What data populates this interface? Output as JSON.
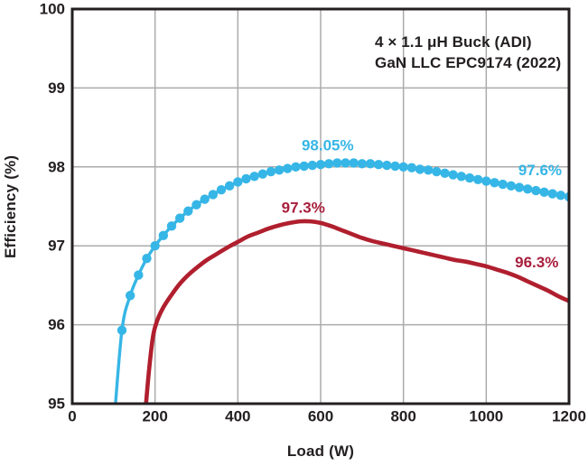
{
  "chart_data": {
    "type": "line",
    "title": "",
    "xlabel": "Load (W)",
    "ylabel": "Efficiency (%)",
    "xlim": [
      0,
      1200
    ],
    "ylim": [
      95,
      100
    ],
    "xticks": [
      0,
      200,
      400,
      600,
      800,
      1000,
      1200
    ],
    "yticks": [
      95,
      96,
      97,
      98,
      99,
      100
    ],
    "grid": true,
    "legend_position": "top-right-inside",
    "axis_color": "#231f20",
    "grid_color": "#ababab",
    "series": [
      {
        "name": "4 × 1.1 μH Buck (ADI)",
        "color": "#36b6e6",
        "marker": "circle",
        "x": [
          100,
          120,
          140,
          160,
          180,
          200,
          220,
          240,
          260,
          280,
          300,
          320,
          340,
          360,
          380,
          400,
          420,
          440,
          460,
          480,
          500,
          520,
          540,
          560,
          580,
          600,
          620,
          640,
          660,
          680,
          700,
          720,
          740,
          760,
          780,
          800,
          820,
          840,
          860,
          880,
          900,
          920,
          940,
          960,
          980,
          1000,
          1020,
          1040,
          1060,
          1080,
          1100,
          1120,
          1140,
          1160,
          1180,
          1200
        ],
        "y": [
          94.7,
          95.93,
          96.37,
          96.63,
          96.84,
          97.0,
          97.13,
          97.25,
          97.35,
          97.44,
          97.52,
          97.59,
          97.65,
          97.71,
          97.76,
          97.81,
          97.85,
          97.88,
          97.91,
          97.94,
          97.96,
          97.98,
          98.0,
          98.01,
          98.02,
          98.03,
          98.04,
          98.05,
          98.05,
          98.05,
          98.04,
          98.04,
          98.03,
          98.02,
          98.01,
          98.0,
          97.99,
          97.97,
          97.96,
          97.94,
          97.92,
          97.9,
          97.88,
          97.86,
          97.84,
          97.82,
          97.8,
          97.78,
          97.76,
          97.74,
          97.72,
          97.7,
          97.68,
          97.66,
          97.64,
          97.62
        ]
      },
      {
        "name": "GaN LLC EPC9174 (2022)",
        "color": "#b01f2e",
        "marker": "none",
        "x": [
          175,
          185,
          195,
          205,
          220,
          240,
          260,
          280,
          300,
          325,
          350,
          375,
          400,
          425,
          450,
          475,
          500,
          525,
          550,
          575,
          600,
          625,
          650,
          675,
          700,
          725,
          750,
          775,
          800,
          825,
          850,
          875,
          900,
          925,
          950,
          975,
          1000,
          1025,
          1050,
          1075,
          1100,
          1125,
          1150,
          1175,
          1200
        ],
        "y": [
          94.8,
          95.4,
          95.85,
          96.05,
          96.22,
          96.38,
          96.52,
          96.63,
          96.72,
          96.82,
          96.9,
          96.98,
          97.05,
          97.12,
          97.17,
          97.22,
          97.26,
          97.29,
          97.31,
          97.31,
          97.29,
          97.25,
          97.2,
          97.15,
          97.1,
          97.06,
          97.03,
          97.0,
          96.97,
          96.94,
          96.91,
          96.88,
          96.85,
          96.82,
          96.8,
          96.77,
          96.74,
          96.7,
          96.66,
          96.61,
          96.55,
          96.49,
          96.43,
          96.36,
          96.3
        ]
      }
    ],
    "annotations": [
      {
        "text": "98.05%",
        "x": 617,
        "y": 98.27,
        "color": "#36b6e6"
      },
      {
        "text": "97.6%",
        "x": 1130,
        "y": 97.96,
        "color": "#36b6e6"
      },
      {
        "text": "97.3%",
        "x": 558,
        "y": 97.48,
        "color": "#a81e3c"
      },
      {
        "text": "96.3%",
        "x": 1122,
        "y": 96.79,
        "color": "#a81e3c"
      }
    ]
  }
}
